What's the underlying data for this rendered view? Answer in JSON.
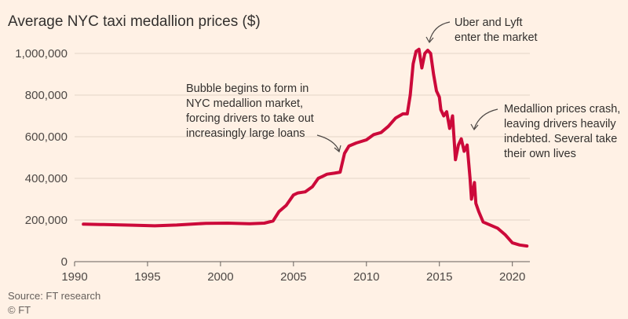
{
  "chart_data": {
    "type": "line",
    "title": "Average NYC taxi medallion prices ($)",
    "xlabel": "",
    "ylabel": "",
    "xlim": [
      1990,
      2021.2
    ],
    "ylim": [
      0,
      1000000
    ],
    "grid": true,
    "x_ticks": [
      1990,
      1995,
      2000,
      2005,
      2010,
      2015,
      2020
    ],
    "x_tick_labels": [
      "1990",
      "1995",
      "2000",
      "2005",
      "2010",
      "2015",
      "2020"
    ],
    "y_ticks": [
      0,
      200000,
      400000,
      600000,
      800000,
      1000000
    ],
    "y_tick_labels": [
      "0",
      "200,000",
      "400,000",
      "600,000",
      "800,000",
      "1,000,000"
    ],
    "colors": {
      "line": "#cc0a3a",
      "background": "#fff1e5"
    },
    "series": [
      {
        "x": [
          1990.6,
          1992,
          1994,
          1995.5,
          1997,
          1999,
          2000.5,
          2002,
          2003,
          2003.6,
          2004,
          2004.5,
          2005,
          2005.3,
          2005.8,
          2006.3,
          2006.7,
          2007,
          2007.3,
          2007.8,
          2008.2,
          2008.5,
          2008.8,
          2009.3,
          2010,
          2010.5,
          2011,
          2011.5,
          2012,
          2012.5,
          2012.8,
          2013,
          2013.2,
          2013.4,
          2013.6,
          2013.8,
          2014,
          2014.2,
          2014.4,
          2014.6,
          2014.8,
          2015,
          2015.1,
          2015.3,
          2015.5,
          2015.7,
          2015.9,
          2016.1,
          2016.3,
          2016.5,
          2016.7,
          2016.9,
          2017.1,
          2017.2,
          2017.4,
          2017.5,
          2017.7,
          2018,
          2018.5,
          2019,
          2019.5,
          2020,
          2020.5,
          2021
        ],
        "y": [
          180000,
          178000,
          175000,
          172000,
          176000,
          184000,
          185000,
          182000,
          185000,
          195000,
          240000,
          270000,
          320000,
          330000,
          335000,
          360000,
          400000,
          410000,
          420000,
          425000,
          430000,
          520000,
          555000,
          570000,
          585000,
          610000,
          620000,
          650000,
          690000,
          710000,
          710000,
          800000,
          950000,
          1010000,
          1020000,
          930000,
          1000000,
          1015000,
          1000000,
          900000,
          820000,
          790000,
          730000,
          700000,
          720000,
          640000,
          700000,
          490000,
          560000,
          590000,
          530000,
          560000,
          400000,
          300000,
          380000,
          280000,
          240000,
          190000,
          175000,
          160000,
          130000,
          90000,
          80000,
          75000
        ]
      }
    ],
    "annotations": [
      {
        "lines": [
          "Bubble begins to form in",
          "NYC medallion market,",
          "forcing drivers to take out",
          "increasingly large loans"
        ]
      },
      {
        "lines": [
          "Uber and Lyft",
          "enter the market"
        ]
      },
      {
        "lines": [
          "Medallion prices crash,",
          "leaving drivers heavily",
          "indebted. Several take",
          "their own lives"
        ]
      }
    ]
  },
  "footer": {
    "source": "Source: FT research",
    "copyright": "© FT"
  }
}
